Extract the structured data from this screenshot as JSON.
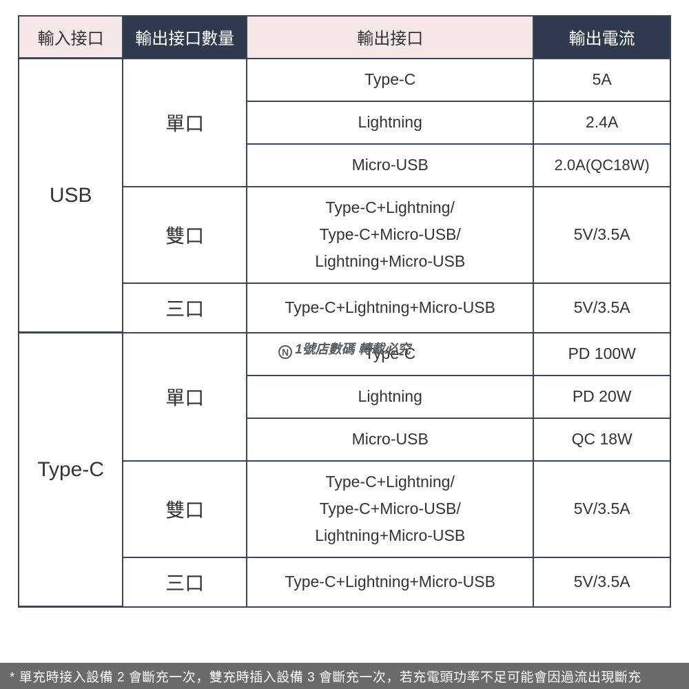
{
  "colors": {
    "border": "#3a4558",
    "header_light": "#f6e8e8",
    "header_dark": "#2f3a4e",
    "text": "#333333",
    "footer_bg": "#6a6a6a",
    "watermark": "#555a60"
  },
  "table": {
    "col_widths_pct": [
      16,
      19,
      44,
      21
    ],
    "headers": [
      {
        "label": "輸入接口",
        "style": "light"
      },
      {
        "label": "輸出接口數量",
        "style": "dark"
      },
      {
        "label": "輸出接口",
        "style": "light"
      },
      {
        "label": "輸出電流",
        "style": "dark"
      }
    ],
    "groups": [
      {
        "input_port": "USB",
        "sections": [
          {
            "qty": "單口",
            "rows": [
              {
                "port": "Type-C",
                "current": "5A"
              },
              {
                "port": "Lightning",
                "current": "2.4A"
              },
              {
                "port": "Micro-USB",
                "current": "2.0A(QC18W)"
              }
            ]
          },
          {
            "qty": "雙口",
            "rows": [
              {
                "port": "Type-C+Lightning/\nType-C+Micro-USB/\nLightning+Micro-USB",
                "current": "5V/3.5A",
                "multi": true
              }
            ]
          },
          {
            "qty": "三口",
            "rows": [
              {
                "port": "Type-C+Lightning+Micro-USB",
                "current": "5V/3.5A"
              }
            ]
          }
        ]
      },
      {
        "input_port": "Type-C",
        "sections": [
          {
            "qty": "單口",
            "rows": [
              {
                "port": "Type-C",
                "current": "PD 100W"
              },
              {
                "port": "Lightning",
                "current": "PD 20W"
              },
              {
                "port": "Micro-USB",
                "current": "QC 18W"
              }
            ]
          },
          {
            "qty": "雙口",
            "rows": [
              {
                "port": "Type-C+Lightning/\nType-C+Micro-USB/\nLightning+Micro-USB",
                "current": "5V/3.5A",
                "multi": true
              }
            ]
          },
          {
            "qty": "三口",
            "rows": [
              {
                "port": "Type-C+Lightning+Micro-USB",
                "current": "5V/3.5A"
              }
            ]
          }
        ]
      }
    ]
  },
  "watermark": {
    "badge": "N",
    "text": "1號店數碼 轉載必究"
  },
  "footer": "* 單充時接入設備 2 會斷充一次，雙充時插入設備 3 會斷充一次，若充電頭功率不足可能會因過流出現斷充"
}
